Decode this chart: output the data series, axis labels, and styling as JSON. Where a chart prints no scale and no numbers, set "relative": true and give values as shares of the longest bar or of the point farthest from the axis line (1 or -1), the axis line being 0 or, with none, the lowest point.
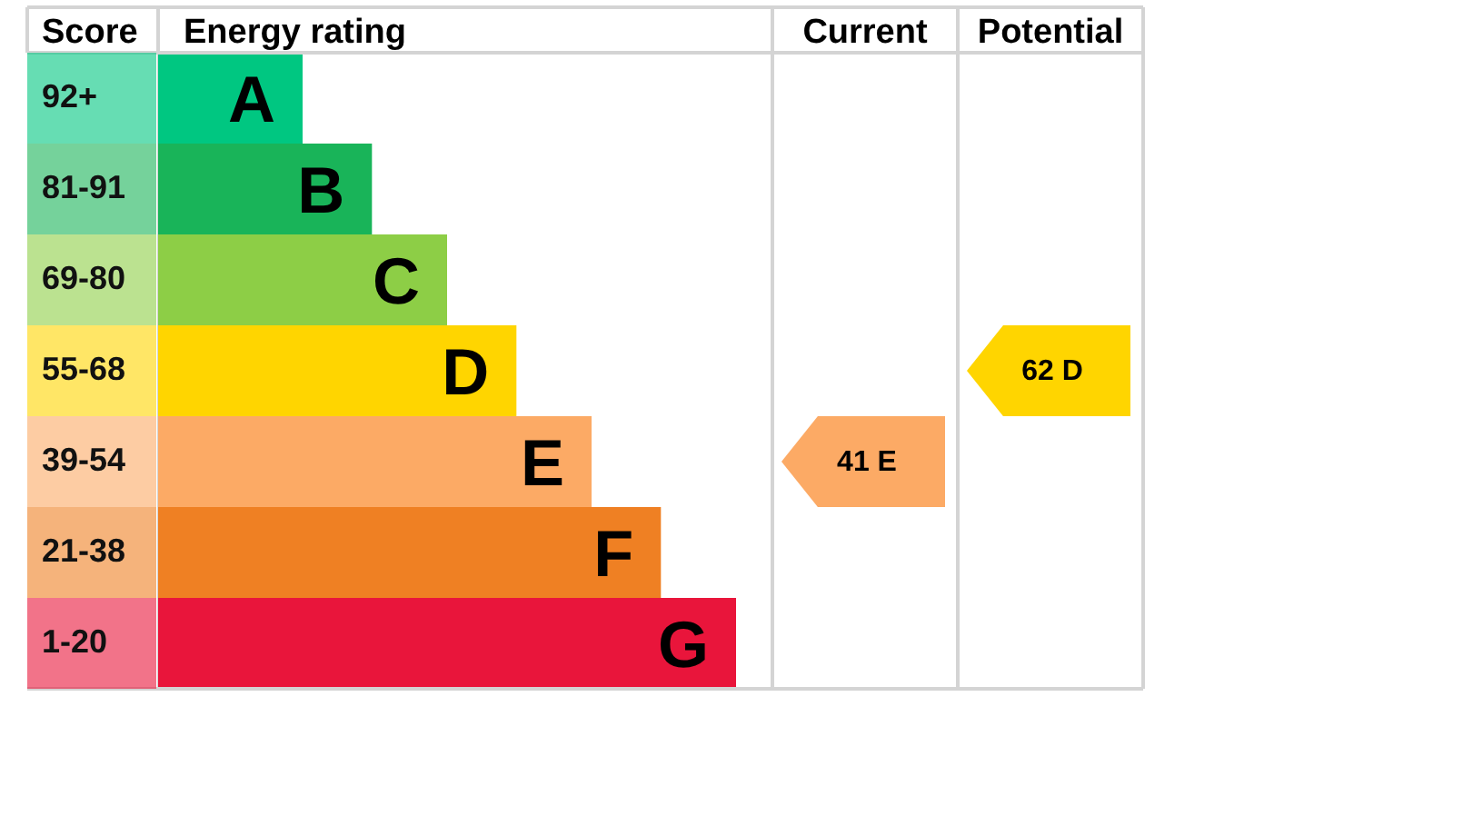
{
  "chart_data": [
    {
      "type": "bar",
      "orientation": "horizontal",
      "relative": true,
      "ylabel": "Score",
      "xlabel": "Energy rating",
      "categories": [
        "92+",
        "81-91",
        "69-80",
        "55-68",
        "39-54",
        "21-38",
        "1-20"
      ],
      "values": [
        0.25,
        0.37,
        0.5,
        0.62,
        0.75,
        0.87,
        1
      ],
      "colors": [
        "#00c781",
        "#19b459",
        "#8dce46",
        "#ffd500",
        "#fcaa65",
        "#ef8023",
        "#e9153b"
      ],
      "annotations": [
        {
          "text": "A",
          "x": 0.25,
          "y": "92+"
        },
        {
          "text": "B",
          "x": 0.37,
          "y": "81-91"
        },
        {
          "text": "C",
          "x": 0.5,
          "y": "69-80"
        },
        {
          "text": "D",
          "x": 0.62,
          "y": "55-68"
        },
        {
          "text": "E",
          "x": 0.75,
          "y": "39-54"
        },
        {
          "text": "F",
          "x": 0.87,
          "y": "21-38"
        },
        {
          "text": "G",
          "x": 1,
          "y": "1-20"
        }
      ]
    },
    {
      "type": "other",
      "title": "Current",
      "categories": [
        null,
        null,
        null,
        null,
        "41 E",
        null,
        null
      ],
      "colors": [
        null,
        null,
        null,
        null,
        "#fcaa65",
        null,
        null
      ]
    },
    {
      "type": "other",
      "title": "Potential",
      "categories": [
        null,
        null,
        null,
        "62 D",
        null,
        null,
        null
      ],
      "colors": [
        null,
        null,
        null,
        "#ffd500",
        null,
        null,
        null
      ]
    }
  ]
}
